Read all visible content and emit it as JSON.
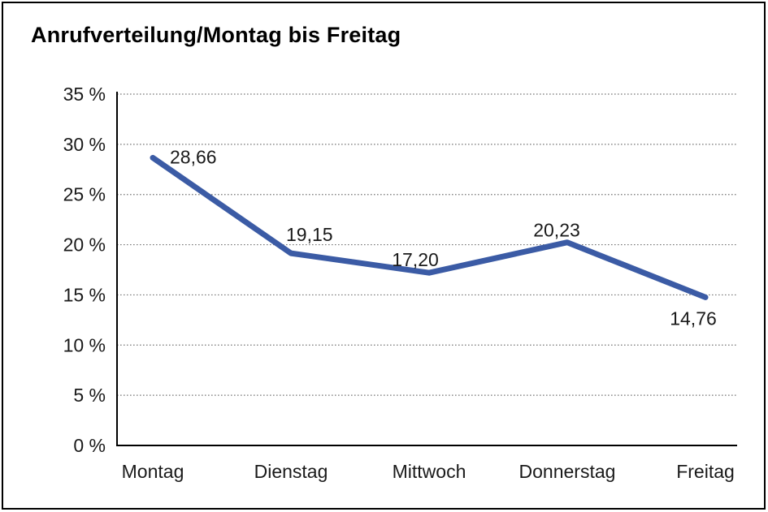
{
  "chart_data": {
    "type": "line",
    "title": "Anrufverteilung/Montag bis Freitag",
    "categories": [
      "Montag",
      "Dienstag",
      "Mittwoch",
      "Donnerstag",
      "Freitag"
    ],
    "series": [
      {
        "name": "Anrufverteilung",
        "values": [
          28.66,
          19.15,
          17.2,
          20.23,
          14.76
        ],
        "point_labels": [
          "28,66",
          "19,15",
          "17,20",
          "20,23",
          "14,76"
        ]
      }
    ],
    "xlabel": "",
    "ylabel": "",
    "ylim": [
      0,
      35
    ],
    "ytick_step": 5,
    "ytick_labels": [
      "0 %",
      "5 %",
      "10 %",
      "15 %",
      "20 %",
      "25 %",
      "30 %",
      "35 %"
    ],
    "grid": "horizontal-dotted",
    "legend": "none",
    "line_color": "#3B5BA5",
    "axis_color": "#000000",
    "gridline_color": "#777777",
    "text_color": "#1a1a1a"
  }
}
